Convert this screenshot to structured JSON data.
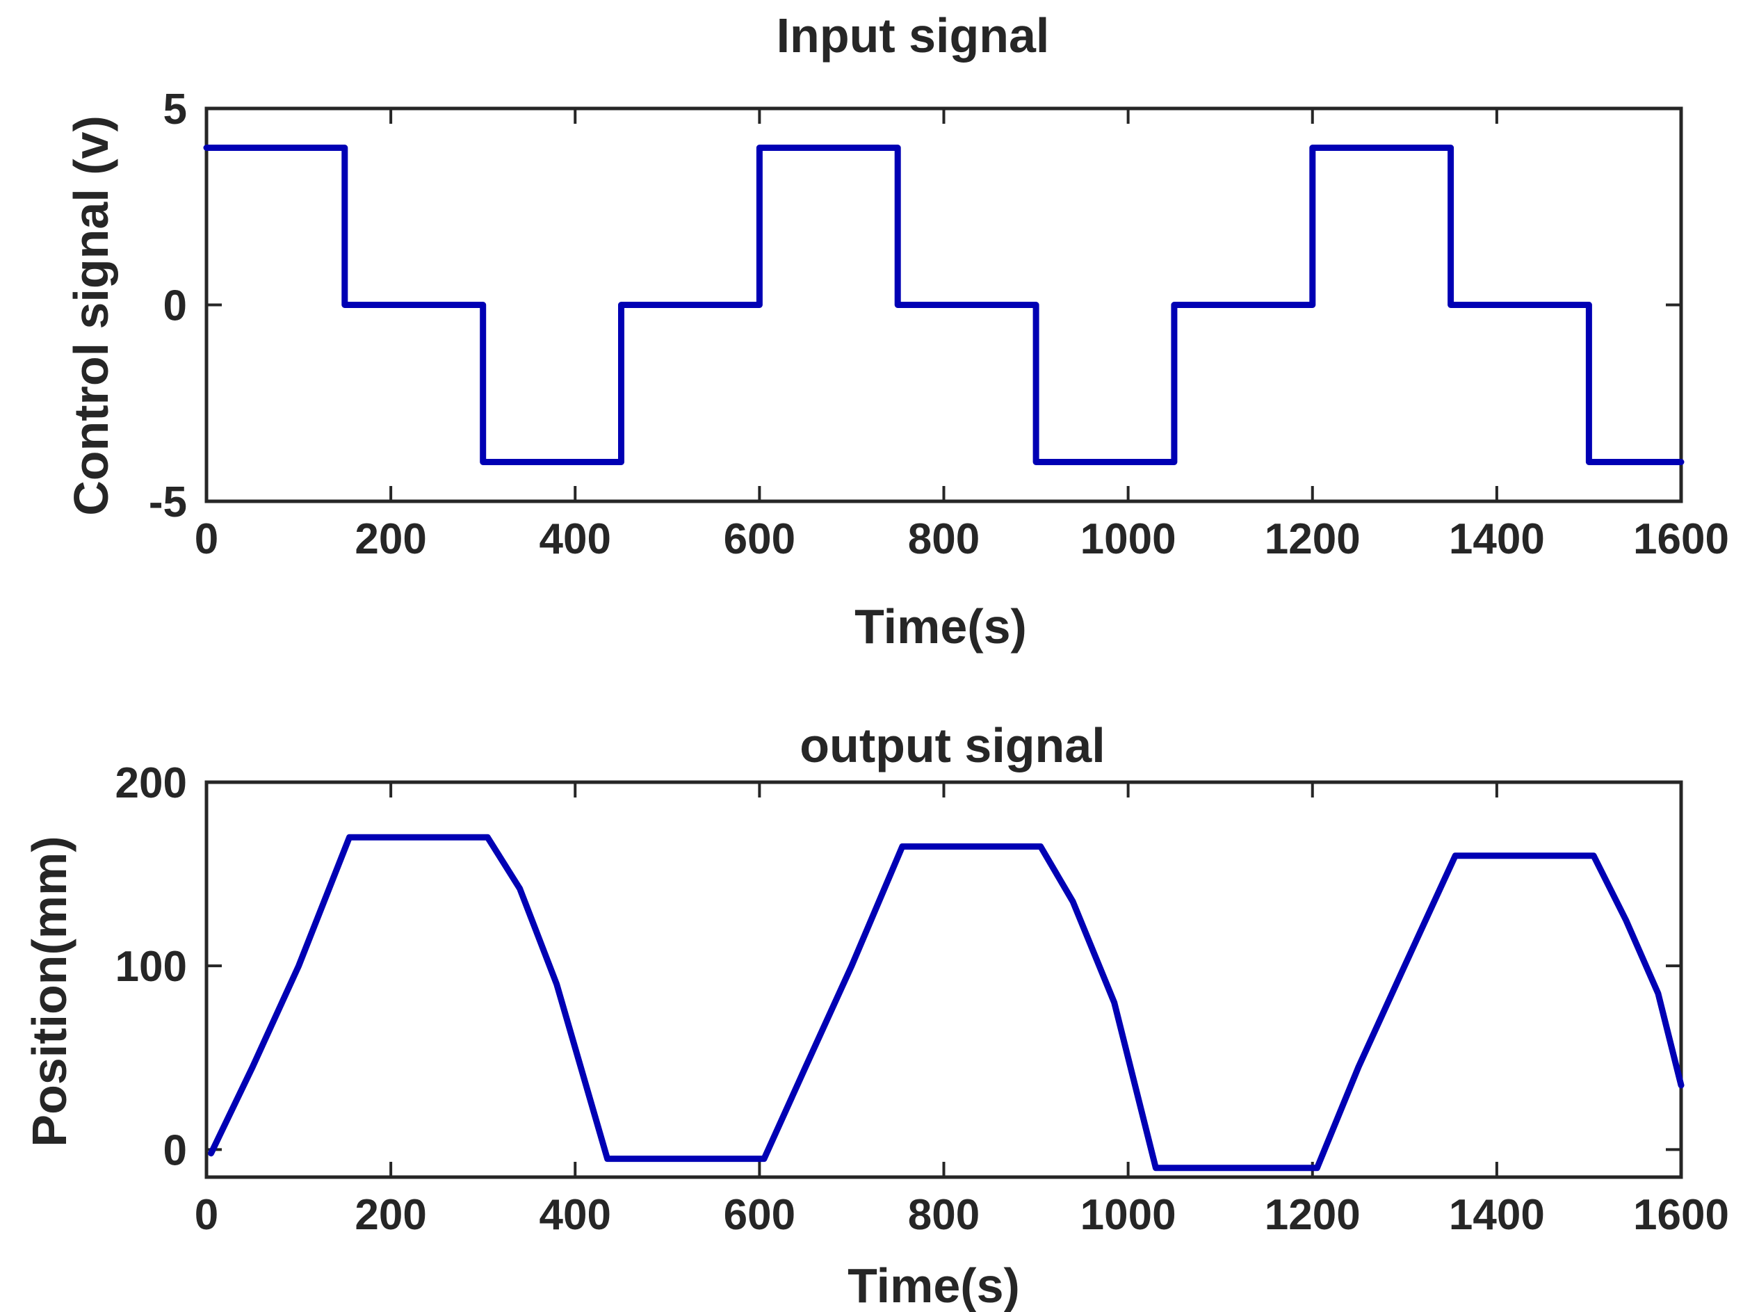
{
  "colors": {
    "series": "#0000b4",
    "axes": "#262626",
    "background": "#ffffff"
  },
  "chart_data": [
    {
      "type": "line",
      "title": "Input signal",
      "xlabel": "Time(s)",
      "ylabel": "Control signal (v)",
      "xlim": [
        0,
        1600
      ],
      "ylim": [
        -5,
        5
      ],
      "xticks": [
        0,
        200,
        400,
        600,
        800,
        1000,
        1200,
        1400,
        1600
      ],
      "yticks": [
        -5,
        0,
        5
      ],
      "xtick_labels": [
        "0",
        "200",
        "400",
        "600",
        "800",
        "1000",
        "1200",
        "1400",
        "1600"
      ],
      "ytick_labels": [
        "-5",
        "0",
        "5"
      ],
      "grid": false,
      "series": [
        {
          "x": [
            0,
            150,
            150,
            300,
            300,
            450,
            450,
            600,
            600,
            750,
            750,
            900,
            900,
            1050,
            1050,
            1200,
            1200,
            1350,
            1350,
            1500,
            1500,
            1600
          ],
          "y": [
            4,
            4,
            0,
            0,
            -4,
            -4,
            0,
            0,
            4,
            4,
            0,
            0,
            -4,
            -4,
            0,
            0,
            4,
            4,
            0,
            0,
            -4,
            -4
          ]
        }
      ]
    },
    {
      "type": "line",
      "title": "output signal",
      "xlabel": "Time(s)",
      "ylabel": "Position(mm)",
      "xlim": [
        0,
        1600
      ],
      "ylim": [
        -15,
        200
      ],
      "xticks": [
        0,
        200,
        400,
        600,
        800,
        1000,
        1200,
        1400,
        1600
      ],
      "yticks": [
        0,
        100,
        200
      ],
      "xtick_labels": [
        "0",
        "200",
        "400",
        "600",
        "800",
        "1000",
        "1200",
        "1400",
        "1600"
      ],
      "ytick_labels": [
        "0",
        "100",
        "200"
      ],
      "grid": false,
      "series": [
        {
          "x": [
            5,
            50,
            100,
            155,
            305,
            340,
            380,
            435,
            605,
            650,
            700,
            755,
            905,
            940,
            985,
            1030,
            1205,
            1250,
            1300,
            1355,
            1505,
            1540,
            1575,
            1600
          ],
          "y": [
            -2,
            45,
            100,
            170,
            170,
            142,
            90,
            -5,
            -5,
            45,
            100,
            165,
            165,
            135,
            80,
            -10,
            -10,
            45,
            100,
            160,
            160,
            125,
            85,
            35
          ]
        }
      ]
    }
  ]
}
